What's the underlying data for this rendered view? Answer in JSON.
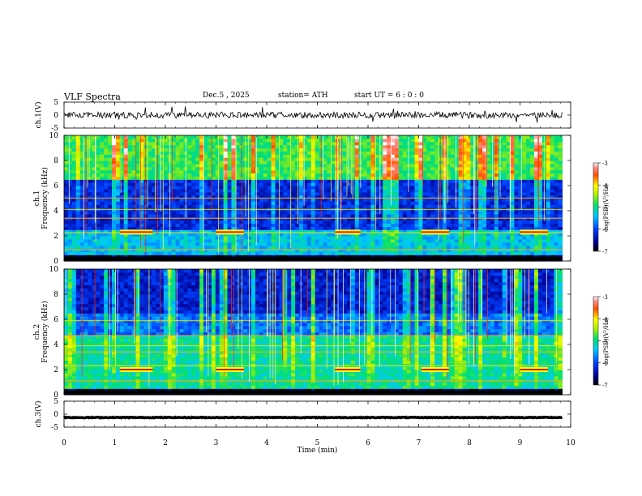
{
  "header": {
    "title": "VLF  Spectra",
    "date": "Dec.5  , 2025",
    "station": "station= ATH",
    "start": "start  UT  =    6  : 0  : 0"
  },
  "chart_data": {
    "type": "heatmap",
    "title": "VLF  Spectra",
    "xlabel": "Time  (min)",
    "xlim": [
      0,
      10
    ],
    "x_ticks": [
      "0",
      "1",
      "2",
      "3",
      "4",
      "5",
      "6",
      "7",
      "8",
      "9",
      "10"
    ],
    "data_end_min": 9.83,
    "panels": [
      {
        "name": "ch1-waveform",
        "kind": "line",
        "ylabel": "ch.1(V)",
        "ylim": [
          -5,
          5
        ],
        "y_ticks": [
          "5",
          "0",
          "-5"
        ],
        "description_level": 0,
        "noise_amplitude_v": 1.2
      },
      {
        "name": "ch1-spectrogram",
        "kind": "heatmap",
        "ylabel_top": "ch.1",
        "ylabel": "Frequency  (kHz)",
        "ylim": [
          0,
          10
        ],
        "y_ticks": [
          "0",
          "2",
          "4",
          "6",
          "8",
          "10"
        ],
        "colorbar": {
          "label": "log(PSD)(V²/Hz)",
          "range": [
            -7,
            -3
          ],
          "ticks": [
            "-3",
            "-4",
            "-5",
            "-6",
            "-7"
          ]
        },
        "bursts_min": [
          [
            1.1,
            1.75
          ],
          [
            3.0,
            3.55
          ],
          [
            5.35,
            5.85
          ],
          [
            7.05,
            7.6
          ],
          [
            9.0,
            9.55
          ]
        ],
        "burst_freq_khz": 2.3
      },
      {
        "name": "ch2-spectrogram",
        "kind": "heatmap",
        "ylabel_top": "ch.2",
        "ylabel": "Frequency  (kHz)",
        "ylim": [
          0,
          10
        ],
        "y_ticks": [
          "0",
          "2",
          "4",
          "6",
          "8",
          "10"
        ],
        "colorbar": {
          "label": "log(PSD)(V²/Hz)",
          "range": [
            -7,
            -3
          ],
          "ticks": [
            "-3",
            "-4",
            "-5",
            "-6",
            "-7"
          ]
        },
        "bursts_min": [
          [
            1.1,
            1.75
          ],
          [
            3.0,
            3.55
          ],
          [
            5.35,
            5.85
          ],
          [
            7.05,
            7.6
          ],
          [
            9.0,
            9.55
          ]
        ],
        "burst_freq_khz": 2.0
      },
      {
        "name": "ch3-waveform",
        "kind": "line",
        "ylabel": "ch.3(V)",
        "ylim": [
          -5,
          5
        ],
        "y_ticks": [
          "5",
          "0",
          "-5"
        ],
        "description_level": -1.3,
        "noise_amplitude_v": 0.15
      }
    ]
  }
}
